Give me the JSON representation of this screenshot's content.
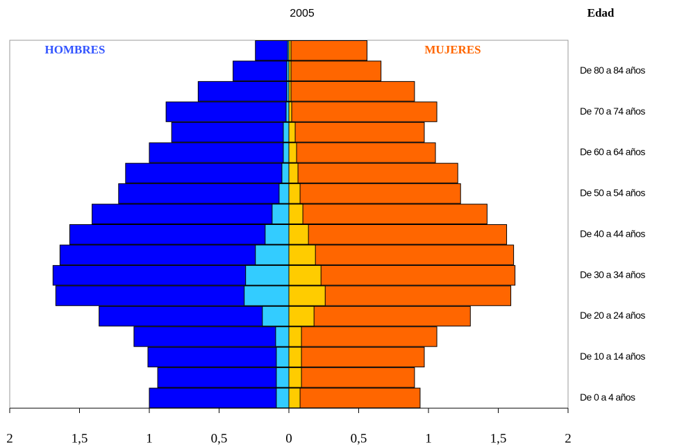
{
  "chart_data": {
    "type": "pyramid",
    "title": "2005",
    "y_label": "Edad",
    "categories": [
      "De 0 a 4 años",
      null,
      "De 10 a 14 años",
      null,
      "De 20 a 24 años",
      null,
      "De 30 a 34 años",
      null,
      "De 40 a 44 años",
      null,
      "De 50 a 54 años",
      null,
      "De 60 a 64 años",
      null,
      "De 70 a 74 años",
      null,
      "De 80 a 84 años",
      null
    ],
    "series": [
      {
        "name": "HOMBRES",
        "color": "#0000ff",
        "values": [
          -1.0,
          -0.94,
          -1.01,
          -1.11,
          -1.36,
          -1.67,
          -1.69,
          -1.64,
          -1.57,
          -1.41,
          -1.22,
          -1.17,
          -1.0,
          -0.84,
          -0.88,
          -0.65,
          -0.4,
          -0.24
        ]
      },
      {
        "color": "#33ccff",
        "values": [
          -0.09,
          -0.09,
          -0.09,
          -0.095,
          -0.19,
          -0.32,
          -0.31,
          -0.24,
          -0.17,
          -0.12,
          -0.07,
          -0.05,
          -0.04,
          -0.04,
          -0.02,
          -0.015,
          -0.015,
          -0.01
        ]
      },
      {
        "name": "MUJERES",
        "color": "#ff6600",
        "values": [
          0.94,
          0.9,
          0.97,
          1.06,
          1.3,
          1.59,
          1.62,
          1.61,
          1.56,
          1.42,
          1.23,
          1.21,
          1.05,
          0.97,
          1.06,
          0.9,
          0.66,
          0.56
        ]
      },
      {
        "color": "#ffcc00",
        "values": [
          0.08,
          0.09,
          0.09,
          0.09,
          0.18,
          0.26,
          0.23,
          0.19,
          0.14,
          0.1,
          0.08,
          0.065,
          0.055,
          0.045,
          0.02,
          0.015,
          0.015,
          0.015
        ]
      }
    ],
    "xlim": [
      -2,
      2
    ],
    "xticks": [
      {
        "value": -2,
        "label": "2"
      },
      {
        "value": -1.5,
        "label": "1,5"
      },
      {
        "value": -1,
        "label": "1"
      },
      {
        "value": -0.5,
        "label": "0,5"
      },
      0,
      {
        "value": 0.5,
        "label": "0,5"
      },
      1,
      {
        "value": 1.5,
        "label": "1,5"
      },
      2
    ]
  }
}
